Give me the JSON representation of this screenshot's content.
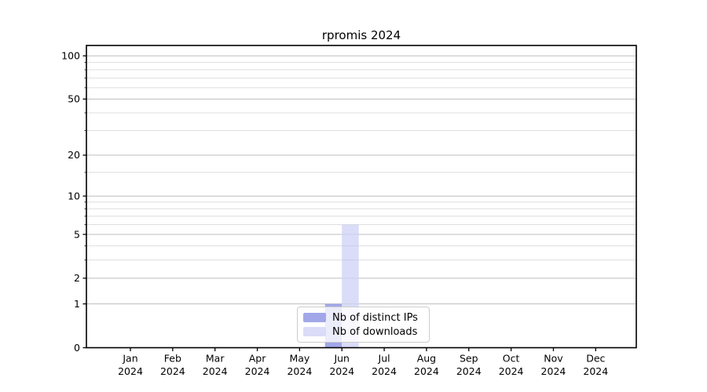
{
  "chart_data": {
    "type": "bar",
    "title": "rpromis 2024",
    "categories": [
      "Jan 2024",
      "Feb 2024",
      "Mar 2024",
      "Apr 2024",
      "May 2024",
      "Jun 2024",
      "Jul 2024",
      "Aug 2024",
      "Sep 2024",
      "Oct 2024",
      "Nov 2024",
      "Dec 2024"
    ],
    "series": [
      {
        "name": "Nb of distinct IPs",
        "color": "#a2a7e9",
        "values": [
          0,
          0,
          0,
          0,
          0,
          1,
          0,
          0,
          0,
          0,
          0,
          0
        ]
      },
      {
        "name": "Nb of downloads",
        "color": "#dadcf8",
        "values": [
          0,
          0,
          0,
          0,
          0,
          6,
          0,
          0,
          0,
          0,
          0,
          0
        ]
      }
    ],
    "xlabel": "",
    "ylabel": "",
    "y_scale": "log1p",
    "y_major_ticks": [
      0,
      1,
      2,
      5,
      10,
      20,
      50,
      100
    ],
    "y_minor_ticks": [
      3,
      4,
      6,
      7,
      8,
      9,
      15,
      30,
      40,
      60,
      70,
      80,
      90
    ],
    "ylim": [
      0,
      118
    ],
    "grid": true,
    "legend_position": "lower center"
  },
  "colors": {
    "spine": "#000000",
    "grid_major": "#c9c9c9",
    "grid_minor": "#ededed",
    "background": "#ffffff"
  }
}
